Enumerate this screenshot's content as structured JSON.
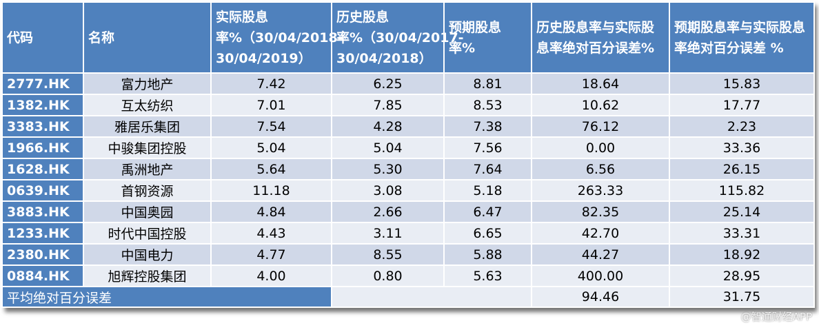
{
  "header": [
    "代码",
    "名称",
    "实际股息率%（30/04/2018-30/04/2019）",
    "历史股息率%（30/04/2017-30/04/2018）",
    "预期股息率%",
    "历史股息率与实际股息率绝对百分误差%",
    "预期股息率与实际股息率绝对百分误差 %"
  ],
  "rows": [
    [
      "2777.HK",
      "富力地产",
      "7.42",
      "6.25",
      "8.81",
      "18.64",
      "15.83"
    ],
    [
      "1382.HK",
      "互太纺织",
      "7.01",
      "7.85",
      "8.53",
      "10.62",
      "17.77"
    ],
    [
      "3383.HK",
      "雅居乐集团",
      "7.54",
      "4.28",
      "7.38",
      "76.12",
      "2.23"
    ],
    [
      "1966.HK",
      "中骏集团控股",
      "5.04",
      "5.04",
      "7.56",
      "0.00",
      "33.36"
    ],
    [
      "1628.HK",
      "禹洲地产",
      "5.64",
      "5.30",
      "7.64",
      "6.56",
      "26.15"
    ],
    [
      "0639.HK",
      "首钢资源",
      "11.18",
      "3.08",
      "5.18",
      "263.33",
      "115.82"
    ],
    [
      "3883.HK",
      "中国奥园",
      "4.84",
      "2.66",
      "6.47",
      "82.35",
      "25.14"
    ],
    [
      "1233.HK",
      "时代中国控股",
      "4.43",
      "3.11",
      "6.65",
      "42.70",
      "33.31"
    ],
    [
      "2380.HK",
      "中国电力",
      "4.77",
      "8.55",
      "5.88",
      "44.27",
      "18.92"
    ],
    [
      "0884.HK",
      "旭辉控股集团",
      "4.00",
      "0.80",
      "5.63",
      "400.00",
      "28.95"
    ]
  ],
  "footer": {
    "label": "平均绝对百分误差",
    "values": [
      "94.46",
      "31.75"
    ]
  },
  "watermark": "@智通财经APP"
}
